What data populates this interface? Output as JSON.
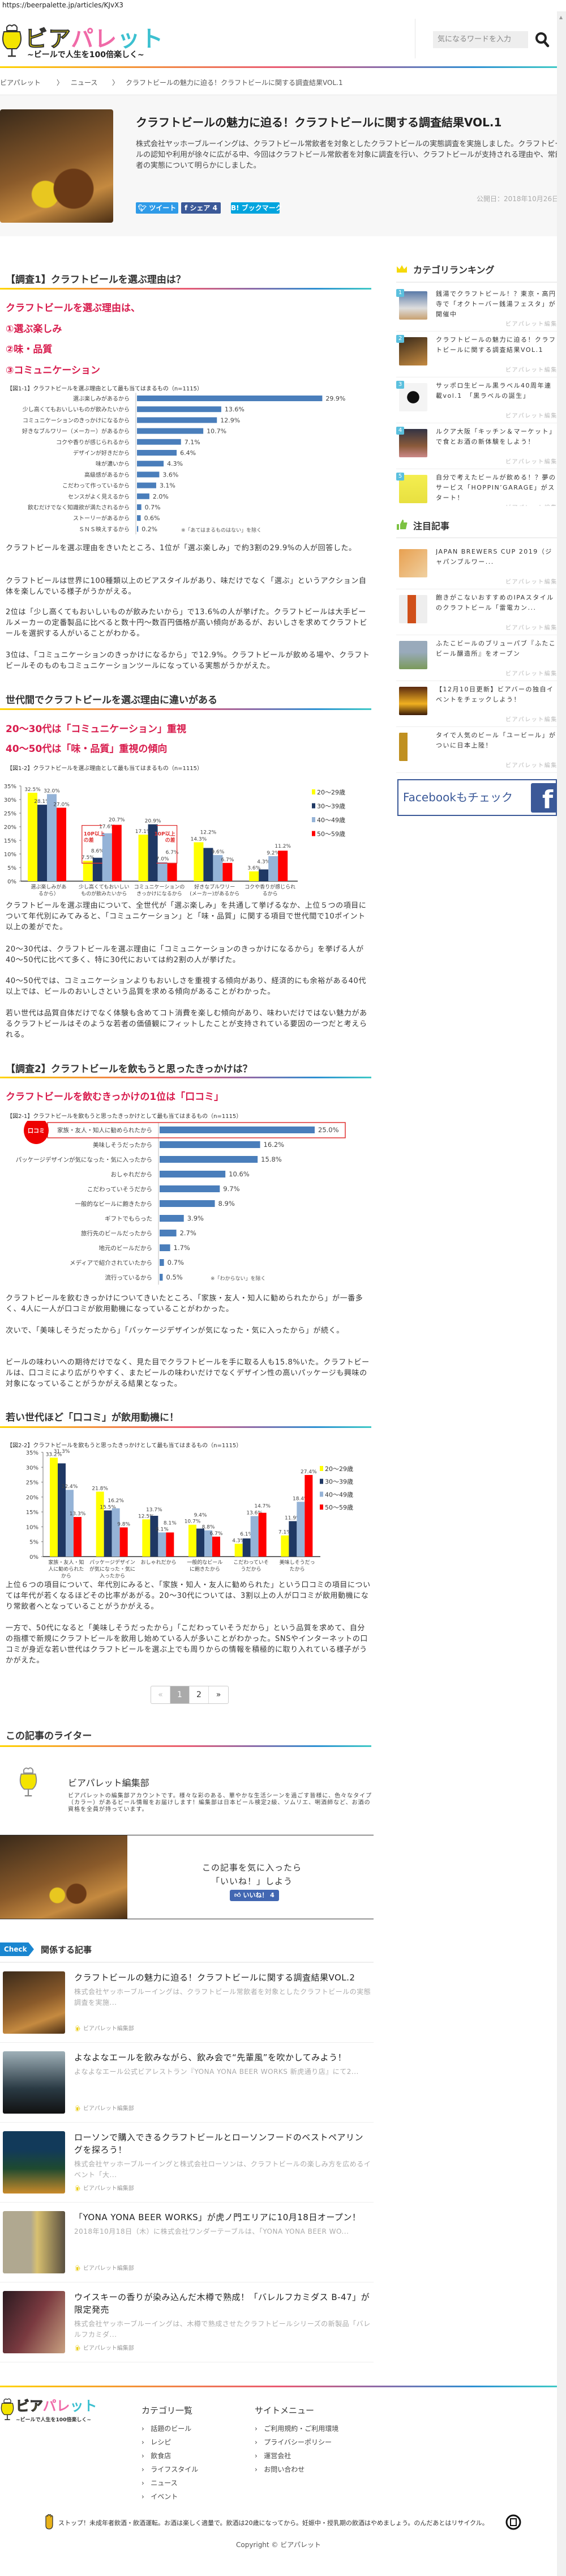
{
  "browser": {
    "url": "https://beerpalette.jp/articles/KJvX3"
  },
  "header": {
    "logo": {
      "text_a": "ビア",
      "text_b": "パレ",
      "text_c": "ット",
      "tagline": "~ビールで人生を100倍楽しく~"
    },
    "search_placeholder": "気になるワードを入力",
    "search_icon": "search-icon"
  },
  "breadcrumb": [
    "ビアパレット",
    "ニュース",
    "クラフトビールの魅力に迫る！クラフトビールに関する調査結果VOL.1"
  ],
  "breadcrumb_separator": "〉",
  "article": {
    "title": "クラフトビールの魅力に迫る！クラフトビールに関する調査結果VOL.1",
    "summary": "株式会社ヤッホーブルーイングは、クラフトビール常飲者を対象としたクラフトビールの実態調査を実施しました。クラフトビールの認知や利用が徐々に広がる中、今回はクラフトビール常飲者を対象に調査を行い、クラフトビールが支持される理由や、常飲者の実態について明らかにしました。",
    "date": "公開日：2018年10月26日",
    "share": {
      "tweet": "ツイート",
      "facebook": "シェア",
      "facebook_count": "4",
      "hatena": "B! ブックマーク"
    }
  },
  "body": {
    "s1_heading": "【調査1】クラフトビールを選ぶ理由は？",
    "s1_red": [
      "クラフトビールを選ぶ理由は、",
      "①選ぶ楽しみ",
      "②味・品質",
      "③コミュニケーション"
    ],
    "s1_paras": [
      "クラフトビールを選ぶ理由をきいたところ、1位が「選ぶ楽しみ」で約3割の29.9%の人が回答した。",
      "クラフトビールは世界に100種類以上のビアスタイルがあり、味だけでなく「選ぶ」というアクション自体を楽しんでいる様子がうかがえる。",
      "2位は「少し高くてもおいしいものが飲みたいから」で13.6%の人が挙げた。クラフトビールは大手ビールメーカーの定番製品に比べると数十円～数百円価格が高い傾向があるが、おいしさを求めてクラフトビールを選択する人がいることがわかる。",
      "3位は、「コミュニケーションのきっかけになるから」で12.9%。クラフトビールが飲める場や、クラフトビールそのものもコミュニケーションツールになっている実態がうかがえた。"
    ],
    "s1b_heading": "世代間でクラフトビールを選ぶ理由に違いがある",
    "s1b_red": [
      "20～30代は「コミュニケーション」重視",
      "40～50代は「味・品質」重視の傾向"
    ],
    "s1b_paras": [
      "クラフトビールを選ぶ理由について、全世代が「選ぶ楽しみ」を共通して挙げるなか、上位５つの項目について年代別にみてみると、「コミュニケーション」と「味・品質」に関する項目で世代間で10ポイント以上の差がでた。",
      "20～30代は、クラフトビールを選ぶ理由に「コミュニケーションのきっかけになるから」を挙げる人が40～50代に比べて多く、特に30代においては約2割の人が挙げた。",
      "40～50代では、コミュニケーションよりもおいしさを重視する傾向があり、経済的にも余裕がある40代以上では、ビールのおいしさという品質を求める傾向があることがわかった。",
      "若い世代は品質自体だけでなく体験も含めてコト消費を楽しむ傾向があり、味わいだけではない魅力があるクラフトビールはそのような若者の価値観にフィットしたことが支持されている要因の一つだと考えられる。"
    ],
    "s2_heading": "【調査2】クラフトビールを飲もうと思ったきっかけは？",
    "s2_red": "クラフトビールを飲むきっかけの1位は「口コミ」",
    "s2_paras": [
      "クラフトビールを飲むきっかけについてきいたところ、「家族・友人・知人に勧められたから」が一番多く、4人に一人が口コミが飲用動機になっていることがわかった。",
      "次いで、「美味しそうだったから」「パッケージデザインが気になった・気に入ったから」が続く。",
      "ビールの味わいへの期待だけでなく、見た目でクラフトビールを手に取る人も15.8%いた。クラフトビールは、口コミにより広がりやすく、またビールの味わいだけでなくデザイン性の高いパッケージも興味の対象になっていることがうかがえる結果となった。"
    ],
    "s2b_heading": "若い世代ほど「口コミ」が飲用動機に！",
    "s2b_paras": [
      "上位６つの項目について、年代別にみると、「家族・知人・友人に勧められた」という口コミの項目については年代が若くなるほどその比率があがる。20～30代については、3割以上の人が口コミが飲用動機になり常飲者へとなっていることがうかがえる。",
      "一方で、50代になると「美味しそうだったから」「こだわっていそうだから」という品質を求めて、自分の指標で新規にクラフトビールを飲用し始めている人が多いことがわかった。SNSやインターネットの口コミが身近な若い世代はクラフトビールを選ぶ上でも周りからの情報を積極的に取り入れている様子がうかがえた。"
    ]
  },
  "chart_data": [
    {
      "type": "bar",
      "orientation": "horizontal",
      "title": "【図1-1】クラフトビールを選ぶ理由として最も当てはまるもの（n=1115）",
      "categories": [
        "選ぶ楽しみがあるから",
        "少し高くてもおいしいものが飲みたいから",
        "コミュニケーションのきっかけになるから",
        "好きなブルワリー（メーカー）があるから",
        "コクや香りが感じられるから",
        "デザインが好きだから",
        "味が濃いから",
        "高級感があるから",
        "こだわって作っているから",
        "センスがよく見えるから",
        "飲むだけでなく知識欲が満たされるから",
        "ストーリーがあるから",
        "ＳＮＳ映えするから"
      ],
      "values": [
        29.9,
        13.6,
        12.9,
        10.7,
        7.1,
        6.4,
        4.3,
        3.6,
        3.1,
        2.0,
        0.7,
        0.6,
        0.2
      ],
      "value_suffix": "%",
      "note": "※「あてはまるものはない」を除く",
      "color": "#4a7ebb"
    },
    {
      "type": "bar",
      "orientation": "vertical",
      "grouped": true,
      "title": "【図1-2】クラフトビールを選ぶ理由として最も当てはまるもの（n=1115）",
      "categories": [
        "選ぶ楽しみがあ\nるから）",
        "少し高くてもおいしい\nものが飲みたいから",
        "コミュニケーションの\nきっかけになるから",
        "好きなブルワリー\n(メーカー)があるから",
        "コクや香りが感じられ\nるから"
      ],
      "series": [
        {
          "name": "20～29歳",
          "color": "#ffff00",
          "values": [
            32.5,
            7.5,
            17.1,
            14.3,
            3.6
          ]
        },
        {
          "name": "30～39歳",
          "color": "#1f3864",
          "values": [
            28.1,
            8.6,
            20.9,
            12.2,
            4.3
          ]
        },
        {
          "name": "40～49歳",
          "color": "#95b3d7",
          "values": [
            32.0,
            17.6,
            7.0,
            9.6,
            9.2
          ]
        },
        {
          "name": "50～59歳",
          "color": "#ff0000",
          "values": [
            27.0,
            20.7,
            6.7,
            6.7,
            11.2
          ]
        }
      ],
      "ylim": [
        0,
        35
      ],
      "yticks": [
        "0%",
        "5%",
        "10%",
        "15%",
        "20%",
        "25%",
        "30%",
        "35%"
      ],
      "legend": "right",
      "annotations": [
        "10P以上\nの差",
        "10P以上\nの差"
      ]
    },
    {
      "type": "bar",
      "orientation": "horizontal",
      "title": "【図2-1】クラフトビールを飲もうと思ったきっかけとして最も当てはまるもの（n=1115）",
      "categories": [
        "家族・友人・知人に勧められたから",
        "美味しそうだったから",
        "パッケージデザインが気になった・気に入ったから",
        "おしゃれだから",
        "こだわっていそうだから",
        "一般的なビールに飽きたから",
        "ギフトでもらった",
        "旅行先のビールだったから",
        "地元のビールだから",
        "メディアで紹介されていたから",
        "流行っているから"
      ],
      "values": [
        25.0,
        16.2,
        15.8,
        10.6,
        9.7,
        8.9,
        3.9,
        2.7,
        1.7,
        0.7,
        0.5
      ],
      "value_suffix": "%",
      "highlight_label": "口コミ",
      "note": "※「わからない」を除く",
      "color": "#4a7ebb"
    },
    {
      "type": "bar",
      "orientation": "vertical",
      "grouped": true,
      "title": "【図2-2】クラフトビールを飲もうと思ったきっかけとして最も当てはまるもの（n=1115）",
      "categories": [
        "家族・友人・知\n人に勧められた\nから",
        "パッケージデザイン\nが気になった・気に\n入ったから",
        "おしゃれだから",
        "一般的なビール\nに飽きたから",
        "こだわっていそ\nうだから",
        "美味しそうだっ\nたから"
      ],
      "series": [
        {
          "name": "20～29歳",
          "color": "#ffff00",
          "values": [
            33.2,
            21.8,
            12.5,
            10.7,
            4.3,
            7.1
          ]
        },
        {
          "name": "30～39歳",
          "color": "#1f3864",
          "values": [
            31.3,
            15.5,
            13.7,
            9.4,
            6.1,
            11.9
          ]
        },
        {
          "name": "40～49歳",
          "color": "#95b3d7",
          "values": [
            22.4,
            16.2,
            8.1,
            8.8,
            13.6,
            18.4
          ]
        },
        {
          "name": "50～59歳",
          "color": "#ff0000",
          "values": [
            13.3,
            9.8,
            8.1,
            6.7,
            14.7,
            27.4
          ]
        }
      ],
      "ylim": [
        0,
        35
      ],
      "yticks": [
        "0%",
        "5%",
        "10%",
        "15%",
        "20%",
        "25%",
        "30%",
        "35%"
      ],
      "legend": "right"
    }
  ],
  "pagination": {
    "prev": "«",
    "pages": [
      "1",
      "2"
    ],
    "current": "1",
    "next": "»"
  },
  "writer": {
    "heading": "この記事のライター",
    "name": "ビアパレット編集部",
    "bio": "ビアパレットの編集部アカウントです。様々な彩のある、華やかな生活シーンを過ごす皆様に、色々なタイプ（カラー）があるビール情報をお届けします！編集部は日本ビール検定2級、ソムリエ、唎酒師など、お酒の資格を全員が持っています。"
  },
  "like_box": {
    "line1": "この記事を気に入ったら",
    "line2": "「いいね！」しよう",
    "button": "いいね！ 4"
  },
  "related": {
    "tag": "Check",
    "heading": "関係する記事",
    "items": [
      {
        "title": "クラフトビールの魅力に迫る！クラフトビールに関する調査結果VOL.2",
        "desc": "株式会社ヤッホーブルーイングは、クラフトビール常飲者を対象としたクラフトビールの実態調査を実施...",
        "author": "ビアパレット編集部"
      },
      {
        "title": "よなよなエールを飲みながら、飲み会で“先輩風”を吹かしてみよう！",
        "desc": "よなよなエール公式ビアレストラン『YONA YONA BEER WORKS 新虎通り店』にて2...",
        "author": "ビアパレット編集部"
      },
      {
        "title": "ローソンで購入できるクラフトビールとローソンフードのベストペアリングを探ろう！",
        "desc": "株式会社ヤッホーブルーイングと株式会社ローソンは、クラフトビールの楽しみ方を広めるイベント「大...",
        "author": "ビアパレット編集部"
      },
      {
        "title": "「YONA YONA BEER WORKS」が虎ノ門エリアに10月18日オープン！",
        "desc": "2018年10月18日（木）に株式会社ワンダーテーブルは、「YONA YONA BEER WO...",
        "author": "ビアパレット編集部"
      },
      {
        "title": "ウイスキーの香りが染み込んだ木樽で熟成！「バレルフカミダス B-47」が限定発売",
        "desc": "株式会社ヤッホーブルーイングは、木樽で熟成させたクラフトビールシリーズの新製品「バレルフカミダ...",
        "author": "ビアパレット編集部"
      }
    ]
  },
  "sidebar": {
    "ranking_heading": "カテゴリランキング",
    "ranking": [
      {
        "rank": "1",
        "title": "銭湯でクラフトビール！？東京・高円寺で「オクトーバー銭湯フェスタ」が開催中",
        "author": "ビアパレット編集部"
      },
      {
        "rank": "2",
        "title": "クラフトビールの魅力に迫る！クラフトビールに関する調査結果VOL.1",
        "author": "ビアパレット編集部"
      },
      {
        "rank": "3",
        "title": "サッポロ生ビール黒ラベル40周年連載vol.1　「黒ラベルの誕生」",
        "author": "ビアパレット編集部"
      },
      {
        "rank": "4",
        "title": "ルクア大阪「キッチン＆マーケット」で食とお酒の新体験をしよう！",
        "author": "ビアパレット編集部"
      },
      {
        "rank": "5",
        "title": "自分で考えたビールが飲める！？夢のサービス「HOPPIN’GARAGE」がスタート！",
        "author": "ビアパレット編集部"
      }
    ],
    "featured_heading": "注目記事",
    "featured": [
      {
        "title": "JAPAN BREWERS CUP 2019（ジャパンブルワー...",
        "author": "ビアパレット編集部"
      },
      {
        "title": "飽きがこないおすすめのIPAスタイルのクラフトビール「雷電カン...",
        "author": "ビアパレット編集部"
      },
      {
        "title": "ふたこビールのブリューパブ『ふたこビール醸造所』をオープン",
        "author": "ビアパレット編集部"
      },
      {
        "title": "【12月10日更新】ビアバーの独自イベントをチェックしよう！",
        "author": "ビアパレット編集部"
      },
      {
        "title": "タイで人気のビール「ユービール」がついに日本上陸！",
        "author": "ビアパレット編集部"
      }
    ],
    "facebook_banner": "Facebookもチェック"
  },
  "footer": {
    "category_heading": "カテゴリ一覧",
    "categories": [
      "話題のビール",
      "レシピ",
      "飲食店",
      "ライフスタイル",
      "ニュース",
      "イベント"
    ],
    "menu_heading": "サイトメニュー",
    "menu": [
      "ご利用規約・ご利用環境",
      "プライバシーポリシー",
      "運営会社",
      "お問い合わせ"
    ],
    "notice": "ストップ！未成年者飲酒・飲酒運転。お酒は楽しく適量で。飲酒は20歳になってから。妊娠中・授乳期の飲酒はやめましょう。のんだあとはリサイクル。",
    "copyright": "Copyright © ビアパレット"
  },
  "colors": {
    "accent_red": "#d81b4c",
    "bar_blue": "#4a7ebb",
    "twitter": "#2f9be8",
    "facebook": "#3b5998",
    "hatena": "#00a4de",
    "check": "#1a86d0"
  }
}
